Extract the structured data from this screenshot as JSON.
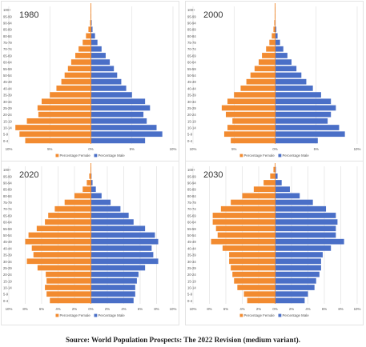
{
  "colors": {
    "female": "#f28b30",
    "male": "#4a6fc7",
    "grid": "#dddddd",
    "text": "#555555"
  },
  "source": "Source: World Population Prospects: The 2022 Revision (medium variant).",
  "chart_data": [
    {
      "type": "bar",
      "title": "1980",
      "categories": [
        "0-4",
        "5-9",
        "10-14",
        "15-19",
        "20-24",
        "25-29",
        "30-34",
        "35-39",
        "40-44",
        "45-49",
        "50-54",
        "55-59",
        "60-64",
        "65-69",
        "70-74",
        "75-79",
        "80-84",
        "85-89",
        "90-94",
        "95-99",
        "100+"
      ],
      "series": [
        {
          "name": "Percentage Female",
          "values": [
            -8.0,
            -8.7,
            -9.2,
            -7.8,
            -6.4,
            -6.5,
            -6.0,
            -5.0,
            -4.2,
            -3.6,
            -3.2,
            -2.8,
            -2.4,
            -1.9,
            -1.5,
            -1.0,
            -0.6,
            -0.3,
            -0.1,
            -0.05,
            -0.02
          ]
        },
        {
          "name": "Percentage Male",
          "values": [
            6.6,
            8.7,
            8.0,
            6.8,
            6.4,
            7.2,
            6.6,
            5.0,
            4.3,
            3.7,
            3.2,
            2.8,
            2.3,
            1.8,
            1.3,
            0.8,
            0.5,
            0.2,
            0.1,
            0.05,
            0.02
          ]
        }
      ],
      "xlim": [
        -10,
        10
      ],
      "xticks": [
        "10%",
        "5%",
        "0%",
        "5%",
        "10%"
      ]
    },
    {
      "type": "bar",
      "title": "2000",
      "categories": [
        "0-4",
        "5-9",
        "10-14",
        "15-19",
        "20-24",
        "25-29",
        "30-34",
        "35-39",
        "40-44",
        "45-49",
        "50-54",
        "55-59",
        "60-64",
        "65-69",
        "70-74",
        "75-79",
        "80-84",
        "85-89",
        "90-94",
        "95-99",
        "100+"
      ],
      "series": [
        {
          "name": "Percentage Female",
          "values": [
            -5.4,
            -6.2,
            -5.8,
            -5.2,
            -6.0,
            -6.5,
            -5.8,
            -5.0,
            -4.2,
            -3.5,
            -3.0,
            -2.5,
            -2.0,
            -1.6,
            -1.1,
            -0.7,
            -0.4,
            -0.2,
            -0.1,
            -0.05,
            -0.02
          ]
        },
        {
          "name": "Percentage Male",
          "values": [
            5.2,
            8.5,
            7.8,
            6.4,
            6.8,
            7.4,
            6.8,
            5.6,
            4.6,
            3.8,
            3.2,
            2.6,
            2.0,
            1.5,
            1.0,
            0.6,
            0.3,
            0.15,
            0.06,
            0.03,
            0.01
          ]
        }
      ],
      "xlim": [
        -10,
        10
      ],
      "xticks": [
        "10%",
        "5%",
        "0%",
        "5%",
        "10%"
      ]
    },
    {
      "type": "bar",
      "title": "2020",
      "categories": [
        "0-4",
        "5-9",
        "10-14",
        "15-19",
        "20-24",
        "25-29",
        "30-34",
        "35-39",
        "40-44",
        "45-49",
        "50-54",
        "55-59",
        "60-64",
        "65-69",
        "70-74",
        "75-79",
        "80-84",
        "85-89",
        "90-94",
        "95-99",
        "100+"
      ],
      "series": [
        {
          "name": "Percentage Female",
          "values": [
            -5.0,
            -5.4,
            -5.6,
            -5.4,
            -5.5,
            -6.5,
            -7.8,
            -7.0,
            -7.2,
            -8.0,
            -7.6,
            -6.6,
            -5.6,
            -5.2,
            -4.4,
            -3.2,
            -2.0,
            -1.0,
            -0.5,
            -0.2,
            -0.05
          ]
        },
        {
          "name": "Percentage Male",
          "values": [
            5.2,
            5.4,
            5.4,
            5.6,
            5.8,
            6.6,
            8.2,
            7.6,
            7.4,
            8.2,
            7.8,
            6.6,
            5.2,
            4.6,
            3.6,
            2.4,
            1.3,
            0.6,
            0.2,
            0.08,
            0.02
          ]
        }
      ],
      "xlim": [
        -10,
        10
      ],
      "xticks": [
        "10%",
        "8%",
        "6%",
        "4%",
        "2%",
        "0%",
        "2%",
        "4%",
        "6%",
        "8%",
        "10%"
      ]
    },
    {
      "type": "bar",
      "title": "2030",
      "categories": [
        "0-4",
        "5-9",
        "10-14",
        "15-19",
        "20-24",
        "25-29",
        "30-34",
        "35-39",
        "40-44",
        "45-49",
        "50-54",
        "55-59",
        "60-64",
        "65-69",
        "70-74",
        "75-79",
        "80-84",
        "85-89",
        "90-94",
        "95-99",
        "100+"
      ],
      "series": [
        {
          "name": "Percentage Female",
          "values": [
            -3.4,
            -3.8,
            -4.6,
            -5.0,
            -5.2,
            -5.4,
            -5.6,
            -5.6,
            -6.4,
            -7.8,
            -7.0,
            -7.2,
            -7.6,
            -7.6,
            -6.6,
            -5.4,
            -4.0,
            -2.6,
            -1.4,
            -0.6,
            -0.2
          ]
        },
        {
          "name": "Percentage Male",
          "values": [
            3.6,
            4.0,
            4.8,
            5.0,
            5.4,
            5.6,
            5.6,
            5.8,
            6.8,
            8.4,
            7.4,
            7.4,
            7.6,
            7.4,
            6.2,
            4.6,
            3.0,
            1.8,
            0.8,
            0.3,
            0.1
          ]
        }
      ],
      "xlim": [
        -10,
        10
      ],
      "xticks": [
        "10%",
        "8%",
        "6%",
        "4%",
        "2%",
        "0%",
        "2%",
        "4%",
        "6%",
        "8%",
        "10%"
      ]
    }
  ]
}
